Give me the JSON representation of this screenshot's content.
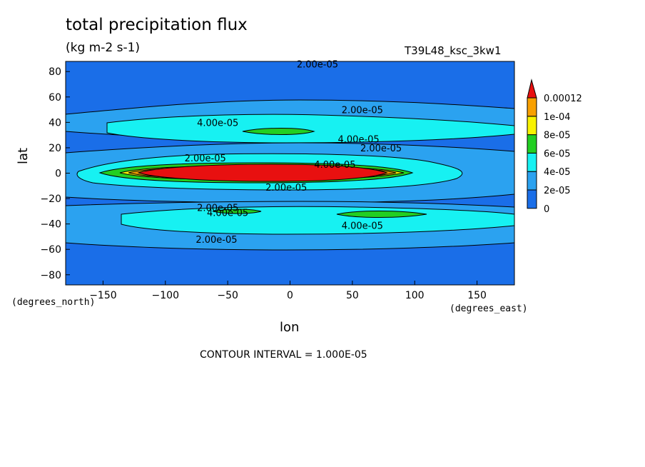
{
  "chart_data": {
    "type": "heatmap",
    "title": "total precipitation flux",
    "units": "(kg m-2 s-1)",
    "run_id": "T39L48_ksc_3kw1",
    "xlabel": "lon",
    "ylabel": "lat",
    "x_unit": "(degrees_east)",
    "y_unit": "(degrees_north)",
    "xlim": [
      -180,
      180
    ],
    "ylim": [
      -88,
      88
    ],
    "xticks": [
      -150,
      -100,
      -50,
      0,
      50,
      100,
      150
    ],
    "yticks": [
      80,
      60,
      40,
      20,
      0,
      -20,
      -40,
      -60,
      -80
    ],
    "contour_interval": "CONTOUR INTERVAL = 1.000E-05",
    "colorbar": {
      "levels": [
        "0",
        "2e-05",
        "4e-05",
        "6e-05",
        "8e-05",
        "1e-04",
        "0.00012"
      ],
      "colors": [
        "#1a6ee8",
        "#2ba2f0",
        "#17f1f2",
        "#22cf22",
        "#f8f200",
        "#f8a000",
        "#e81010"
      ]
    },
    "contour_labels": [
      {
        "text": "2.00e-05",
        "lon": 22,
        "lat": 86
      },
      {
        "text": "2.00e-05",
        "lon": 58,
        "lat": 50
      },
      {
        "text": "4.00e-05",
        "lon": -58,
        "lat": 40
      },
      {
        "text": "4.00e-05",
        "lon": 55,
        "lat": 27
      },
      {
        "text": "2.00e-05",
        "lon": 73,
        "lat": 20
      },
      {
        "text": "2.00e-05",
        "lon": -68,
        "lat": 12
      },
      {
        "text": "4.00e-05",
        "lon": 36,
        "lat": 7
      },
      {
        "text": "2.00e-05",
        "lon": -3,
        "lat": -11
      },
      {
        "text": "2.00e-05",
        "lon": -58,
        "lat": -27
      },
      {
        "text": "4.00e-05",
        "lon": -50,
        "lat": -31
      },
      {
        "text": "4.00e-05",
        "lon": 58,
        "lat": -41
      },
      {
        "text": "2.00e-05",
        "lon": -59,
        "lat": -52
      }
    ],
    "grid": false
  }
}
